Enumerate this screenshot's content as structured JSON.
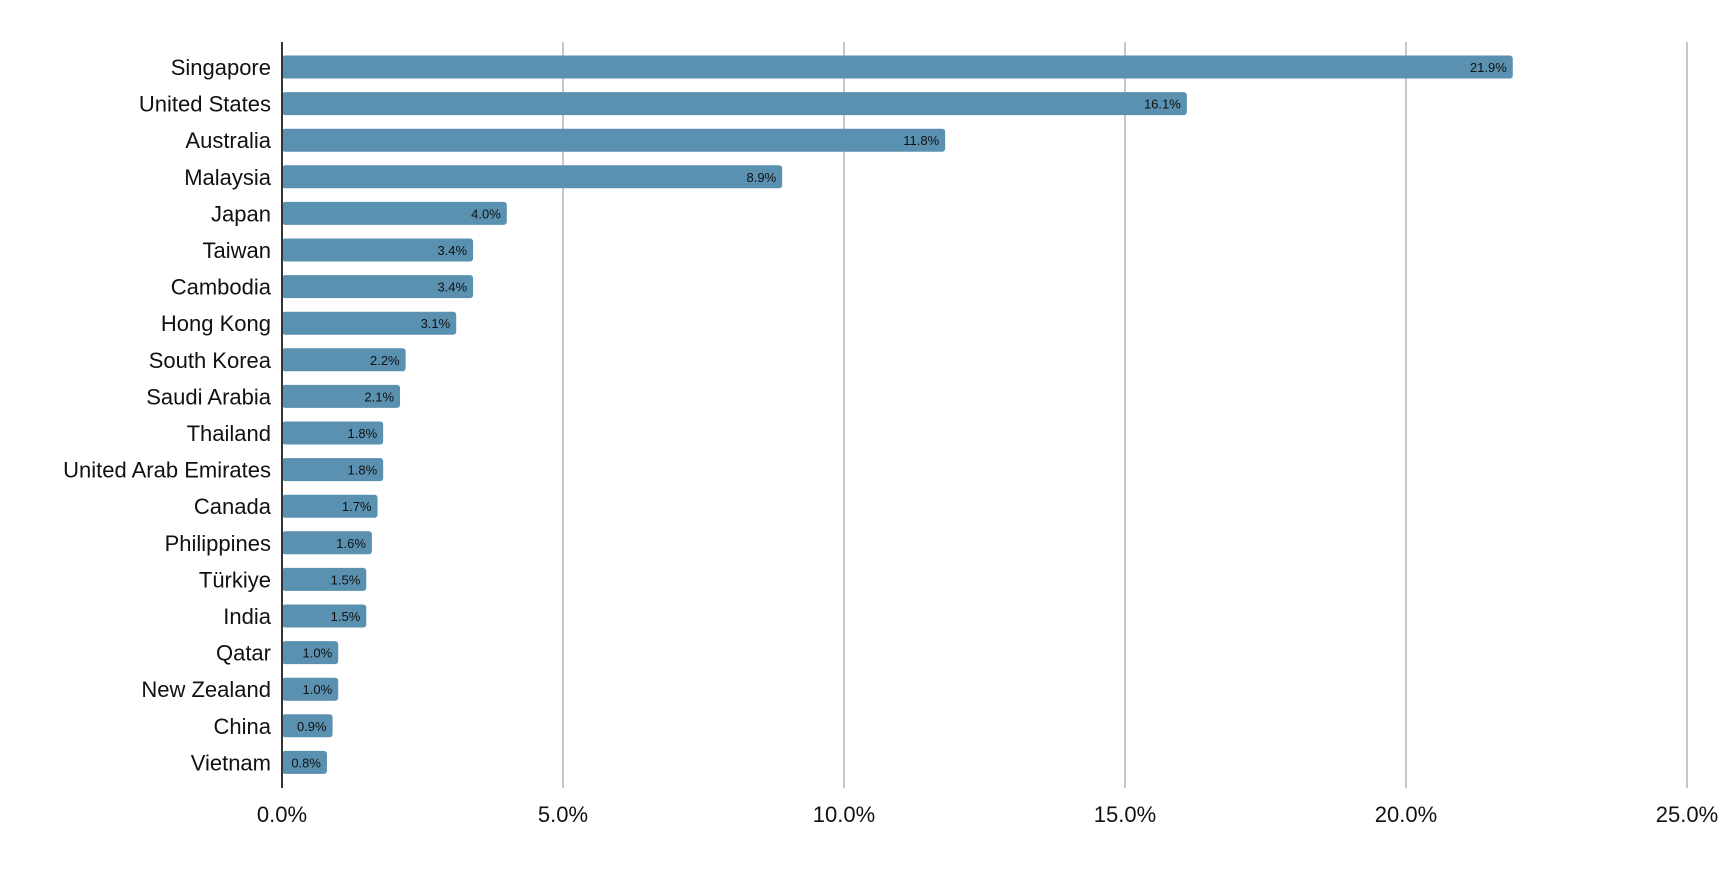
{
  "chart_data": {
    "type": "bar",
    "orientation": "horizontal",
    "title": "",
    "xlabel": "",
    "ylabel": "",
    "xlim": [
      0,
      25
    ],
    "x_ticks": [
      "0.0%",
      "5.0%",
      "10.0%",
      "15.0%",
      "20.0%",
      "25.0%"
    ],
    "grid": "vertical",
    "bar_color": "#5a91b0",
    "categories": [
      "Singapore",
      "United States",
      "Australia",
      "Malaysia",
      "Japan",
      "Taiwan",
      "Cambodia",
      "Hong Kong",
      "South Korea",
      "Saudi Arabia",
      "Thailand",
      "United Arab Emirates",
      "Canada",
      "Philippines",
      "Türkiye",
      "India",
      "Qatar",
      "New Zealand",
      "China",
      "Vietnam"
    ],
    "values": [
      21.9,
      16.1,
      11.8,
      8.9,
      4.0,
      3.4,
      3.4,
      3.1,
      2.2,
      2.1,
      1.8,
      1.8,
      1.7,
      1.6,
      1.5,
      1.5,
      1.0,
      1.0,
      0.9,
      0.8
    ],
    "data_labels": [
      "21.9%",
      "16.1%",
      "11.8%",
      "8.9%",
      "4.0%",
      "3.4%",
      "3.4%",
      "3.1%",
      "2.2%",
      "2.1%",
      "1.8%",
      "1.8%",
      "1.7%",
      "1.6%",
      "1.5%",
      "1.5%",
      "1.0%",
      "1.0%",
      "0.9%",
      "0.8%"
    ]
  }
}
